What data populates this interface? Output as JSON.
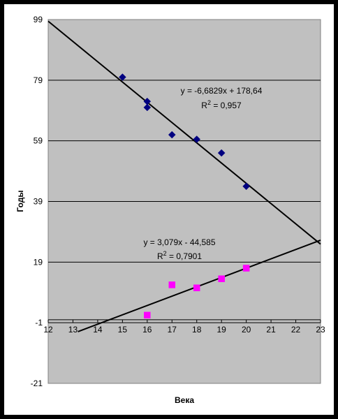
{
  "chart_data": {
    "type": "scatter",
    "title": "",
    "xlabel": "Века",
    "ylabel": "Годы",
    "xlim": [
      12,
      23
    ],
    "ylim": [
      -21,
      99
    ],
    "x_ticks": [
      "12",
      "13",
      "14",
      "15",
      "16",
      "17",
      "18",
      "19",
      "20",
      "21",
      "22",
      "23"
    ],
    "y_ticks": [
      "99",
      "79",
      "59",
      "39",
      "19",
      "-1",
      "-21"
    ],
    "grid": "horizontal",
    "legend": "none",
    "colors": {
      "plot_bg": "#c0c0c0",
      "series1": "#000080",
      "series2": "#ff00ff",
      "trend": "#000000"
    },
    "series": [
      {
        "marker": "diamond",
        "points": [
          [
            15,
            80
          ],
          [
            16,
            72
          ],
          [
            16,
            70
          ],
          [
            17,
            61
          ],
          [
            18,
            59.5
          ],
          [
            19,
            55
          ],
          [
            20,
            44
          ]
        ]
      },
      {
        "marker": "square",
        "points": [
          [
            16,
            1.5
          ],
          [
            17,
            11.5
          ],
          [
            18,
            10.5
          ],
          [
            19,
            13.5
          ],
          [
            20,
            17
          ]
        ]
      }
    ],
    "trendlines": [
      {
        "equation": "y = -6,6829x + 178,64",
        "r2": "0,957",
        "slope": -6.6829,
        "intercept": 178.64
      },
      {
        "equation": "y = 3,079x - 44,585",
        "r2": "0,7901",
        "slope": 3.079,
        "intercept": -44.585
      }
    ]
  }
}
